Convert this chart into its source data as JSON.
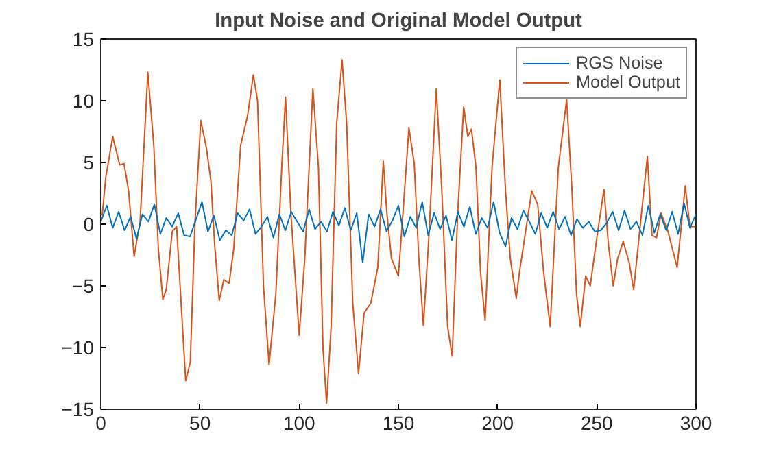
{
  "chart_data": {
    "type": "line",
    "title": "Input Noise and Original Model Output",
    "xlim": [
      0,
      300
    ],
    "ylim": [
      -15,
      15
    ],
    "xticks": [
      0,
      50,
      100,
      150,
      200,
      250,
      300
    ],
    "yticks": [
      -15,
      -10,
      -5,
      0,
      5,
      10,
      15
    ],
    "grid": false,
    "legend": "top right",
    "series": [
      {
        "name": "RGS Noise",
        "color": "#0072bd",
        "x": [
          0,
          3,
          6,
          9,
          12,
          15,
          18,
          21,
          24,
          27,
          30,
          33,
          36,
          39,
          42,
          45,
          48,
          51,
          54,
          57,
          60,
          63,
          66,
          69,
          72,
          75,
          78,
          81,
          84,
          87,
          90,
          93,
          96,
          99,
          102,
          105,
          108,
          111,
          114,
          117,
          120,
          123,
          126,
          129,
          132,
          135,
          138,
          141,
          144,
          147,
          150,
          153,
          156,
          159,
          162,
          165,
          168,
          171,
          174,
          177,
          180,
          183,
          186,
          189,
          192,
          195,
          198,
          201,
          204,
          207,
          210,
          213,
          216,
          219,
          222,
          225,
          228,
          231,
          234,
          237,
          240,
          243,
          246,
          249,
          252,
          255,
          258,
          261,
          264,
          267,
          270,
          273,
          276,
          279,
          282,
          285,
          288,
          291,
          294,
          297,
          300
        ],
        "values": [
          0.2,
          1.5,
          -0.3,
          1.0,
          -0.5,
          0.6,
          -1.2,
          0.8,
          0.2,
          1.6,
          -0.8,
          0.5,
          -0.2,
          0.9,
          -0.9,
          -1.0,
          0.4,
          1.8,
          -0.6,
          0.7,
          -1.3,
          -0.5,
          -0.9,
          0.9,
          0.3,
          1.2,
          -0.8,
          -0.2,
          0.6,
          -1.1,
          0.8,
          -0.5,
          1.0,
          0.2,
          -0.6,
          1.2,
          -0.4,
          0.2,
          -0.6,
          1.0,
          -0.1,
          1.3,
          -0.5,
          0.9,
          -3.1,
          0.8,
          -0.2,
          1.2,
          -0.6,
          0.3,
          1.5,
          -1.0,
          0.6,
          -0.3,
          1.8,
          -0.9,
          0.9,
          -0.4,
          0.7,
          -1.3,
          1.0,
          -0.2,
          1.4,
          -0.8,
          0.5,
          -0.3,
          1.8,
          -0.7,
          -1.8,
          0.5,
          -0.4,
          1.1,
          0.2,
          -0.8,
          0.9,
          -0.3,
          1.0,
          -0.4,
          0.6,
          -0.9,
          0.4,
          -0.3,
          0.2,
          -0.6,
          -0.5,
          0.1,
          1.0,
          -0.5,
          1.1,
          -0.4,
          0.2,
          -0.9,
          1.5,
          -0.7,
          0.8,
          -0.5,
          1.0,
          -0.8,
          1.7,
          -0.3,
          0.8
        ]
      },
      {
        "name": "Model Output",
        "color": "#d95319",
        "x": [
          0.7,
          2.5,
          6,
          9.5,
          11.7,
          14,
          16.8,
          19.8,
          23.7,
          26.7,
          29,
          31.3,
          33,
          36,
          38.2,
          42.8,
          45.1,
          47.5,
          50.4,
          53.2,
          55.5,
          57.4,
          59.7,
          62,
          64.7,
          67,
          70.5,
          74,
          76.9,
          79,
          82,
          84.8,
          88.2,
          91.2,
          93.1,
          95.8,
          100,
          102.8,
          106.9,
          109.7,
          112,
          113.8,
          116.1,
          118.9,
          121.6,
          123.9,
          127,
          129.9,
          132.7,
          136.1,
          139.6,
          142.4,
          144.2,
          146.5,
          150,
          152.3,
          155.3,
          158,
          160.3,
          162.6,
          165.4,
          169.1,
          171.9,
          174.8,
          177.1,
          179.9,
          182.9,
          185,
          186.8,
          189.1,
          191.4,
          193.7,
          197.2,
          201.1,
          204,
          206.4,
          209.4,
          211,
          217.2,
          220.2,
          223.2,
          226.5,
          230.6,
          234.8,
          237.5,
          239.8,
          241.7,
          244.4,
          246.7,
          250.2,
          253.6,
          255.9,
          258.3,
          260.5,
          263.3,
          266.3,
          268.6,
          272.1,
          275.5,
          277.8,
          280.1,
          282.4,
          285.9,
          290.5,
          294.6,
          296.9,
          299.7
        ],
        "values": [
          0.7,
          3.8,
          7.1,
          4.8,
          4.9,
          2.7,
          -2.6,
          0.2,
          12.3,
          6.4,
          -2,
          -6.1,
          -5.3,
          -0.6,
          -0.2,
          -12.7,
          -11.2,
          0.2,
          8.4,
          6.2,
          3.5,
          -1.7,
          -6.2,
          -4.5,
          -4.8,
          -2,
          6.4,
          8.8,
          12.1,
          10,
          -5,
          -11.4,
          -5.7,
          4.6,
          10.3,
          0.9,
          -9,
          -2.8,
          11,
          4.6,
          -10.1,
          -14.5,
          -8.3,
          8.2,
          13.3,
          8.2,
          -6.4,
          -12.1,
          -7.2,
          -6.4,
          -3.5,
          5.1,
          0.9,
          -2.8,
          -4.2,
          0.9,
          7.8,
          4.9,
          -2.8,
          -8.2,
          -0.9,
          11,
          2.7,
          -8.3,
          -10.7,
          0.9,
          9.5,
          7.1,
          7.7,
          4.6,
          -3.9,
          -7.8,
          4.6,
          11.7,
          2.7,
          -2.8,
          -6,
          -3.9,
          2.7,
          1.6,
          -3.9,
          -8.3,
          4.6,
          10.1,
          2.7,
          -5.7,
          -8.3,
          -4.2,
          -5,
          -0.9,
          2.8,
          -1.7,
          -5,
          -2.8,
          -1.4,
          -3.1,
          -5.3,
          0.2,
          5.5,
          -0.9,
          -1.1,
          0.9,
          -0.6,
          -3.5,
          3.1,
          -0.2,
          -0.2
        ]
      }
    ]
  }
}
